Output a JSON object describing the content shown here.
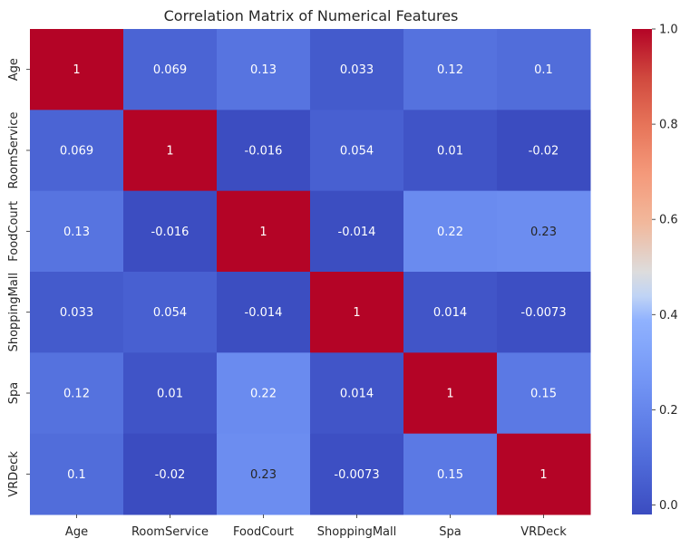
{
  "chart_data": {
    "type": "heatmap",
    "title": "Correlation Matrix of Numerical Features",
    "xlabel": "",
    "ylabel": "",
    "labels": [
      "Age",
      "RoomService",
      "FoodCourt",
      "ShoppingMall",
      "Spa",
      "VRDeck"
    ],
    "values": [
      [
        1,
        0.069,
        0.13,
        0.033,
        0.12,
        0.1
      ],
      [
        0.069,
        1,
        -0.016,
        0.054,
        0.01,
        -0.02
      ],
      [
        0.13,
        -0.016,
        1,
        -0.014,
        0.22,
        0.23
      ],
      [
        0.033,
        0.054,
        -0.014,
        1,
        0.014,
        -0.0073
      ],
      [
        0.12,
        0.01,
        0.22,
        0.014,
        1,
        0.15
      ],
      [
        0.1,
        -0.02,
        0.23,
        -0.0073,
        0.15,
        1
      ]
    ],
    "annotations": [
      [
        "1",
        "0.069",
        "0.13",
        "0.033",
        "0.12",
        "0.1"
      ],
      [
        "0.069",
        "1",
        "-0.016",
        "0.054",
        "0.01",
        "-0.02"
      ],
      [
        "0.13",
        "-0.016",
        "1",
        "-0.014",
        "0.22",
        "0.23"
      ],
      [
        "0.033",
        "0.054",
        "-0.014",
        "1",
        "0.014",
        "-0.0073"
      ],
      [
        "0.12",
        "0.01",
        "0.22",
        "0.014",
        "1",
        "0.15"
      ],
      [
        "0.1",
        "-0.02",
        "0.23",
        "-0.0073",
        "0.15",
        "1"
      ]
    ],
    "colormap": "coolwarm",
    "colorbar": {
      "range": [
        -0.02,
        1.0
      ],
      "ticks": [
        0.0,
        0.2,
        0.4,
        0.6,
        0.8,
        1.0
      ],
      "tick_labels": [
        "0.0",
        "0.2",
        "0.4",
        "0.6",
        "0.8",
        "1.0"
      ]
    }
  }
}
